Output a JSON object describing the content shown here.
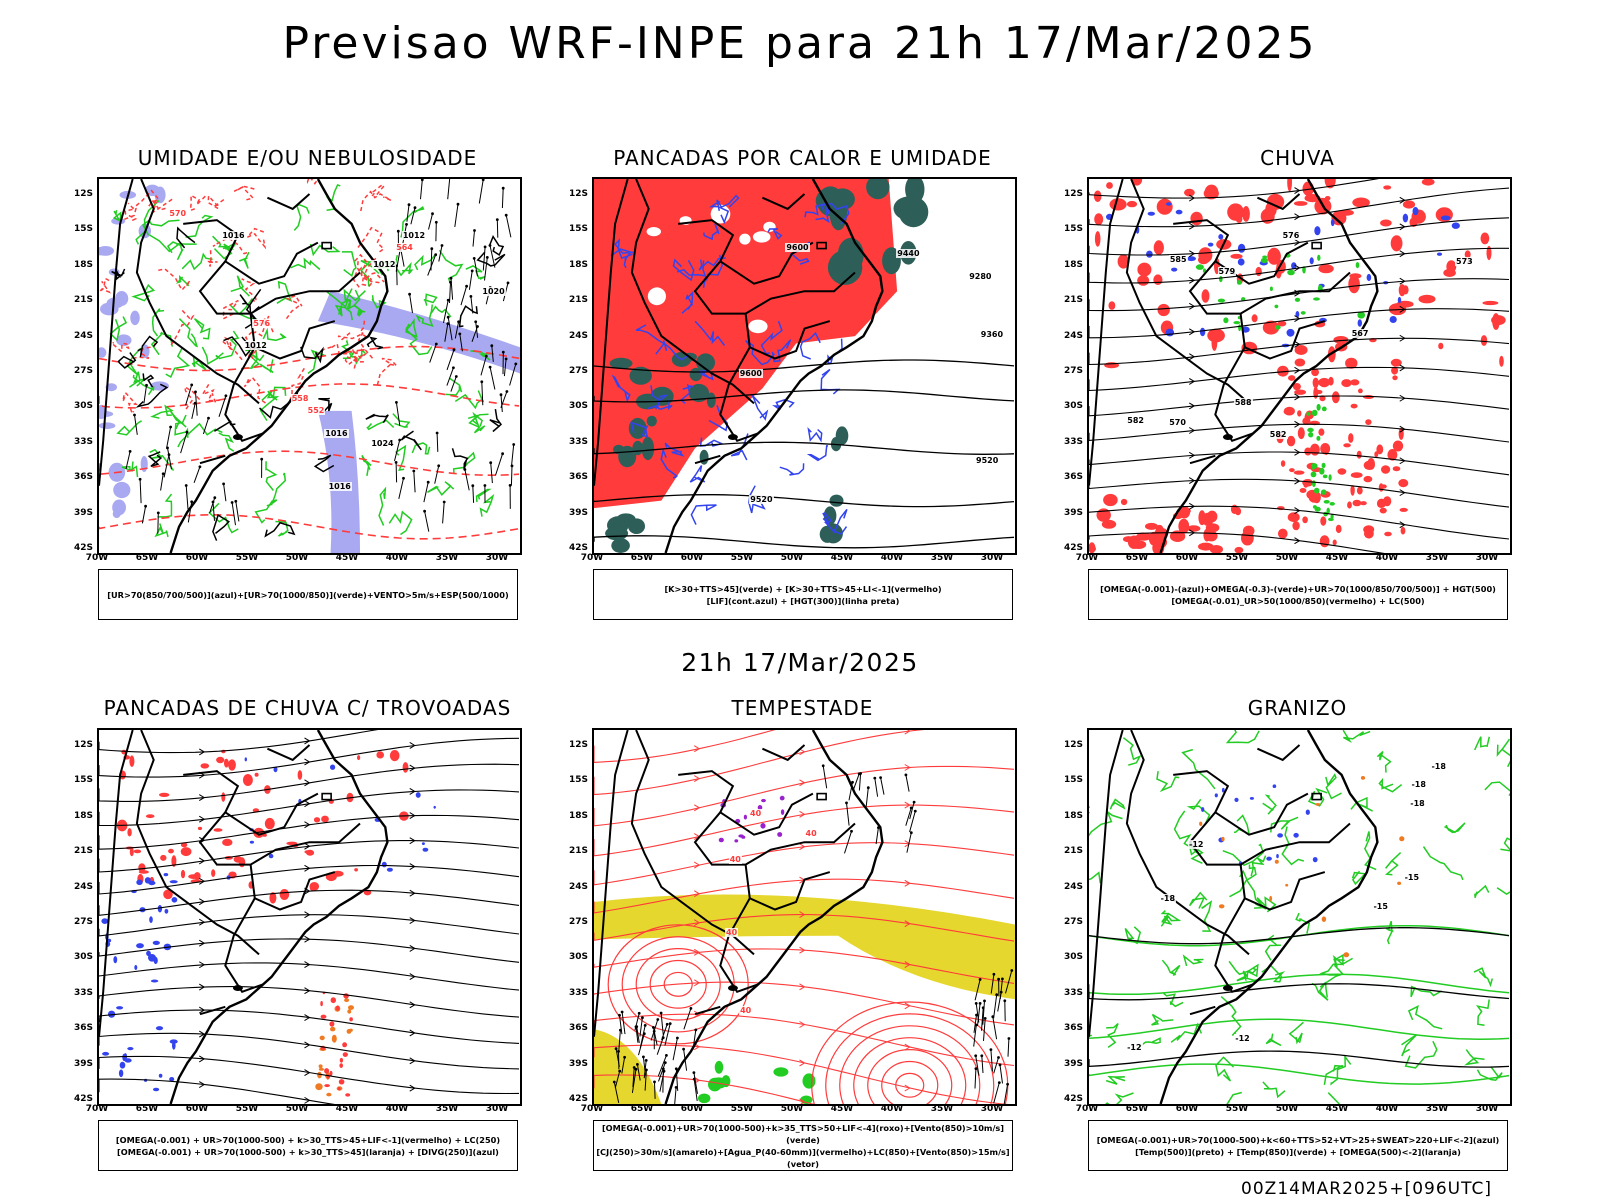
{
  "main_title": "Previsao WRF-INPE  para 21h 17/Mar/2025",
  "mid_title": "21h 17/Mar/2025",
  "footer": "00Z14MAR2025+[096UTC]",
  "lat_ticks": [
    "12S",
    "15S",
    "18S",
    "21S",
    "24S",
    "27S",
    "30S",
    "33S",
    "36S",
    "39S",
    "42S"
  ],
  "lon_ticks": [
    "70W",
    "65W",
    "60W",
    "55W",
    "50W",
    "45W",
    "40W",
    "35W",
    "30W"
  ],
  "panels": [
    {
      "title": "UMIDADE E/OU NEBULOSIDADE",
      "legend": [
        "[UR>70(850/700/500)](azul)+[UR>70(1000/850)](verde)+VENTO>5m/s+ESP(500/1000)"
      ],
      "contour_labels": [
        "1012",
        "1012",
        "1012",
        "1016",
        "1016",
        "1016",
        "1020",
        "1024",
        "576",
        "570",
        "564",
        "558",
        "552"
      ]
    },
    {
      "title": "PANCADAS POR CALOR E UMIDADE",
      "legend": [
        "[K>30+TTS>45](verde) + [K>30+TTS>45+LI<-1](vermelho)",
        "[LIF](cont.azul) + [HGT(300)](linha preta)"
      ],
      "contour_labels": [
        "9600",
        "9600",
        "9520",
        "9520",
        "9440",
        "9360",
        "9280"
      ]
    },
    {
      "title": "CHUVA",
      "legend": [
        "[OMEGA(-0.001)-(azul)+OMEGA(-0.3)-(verde)+UR>70(1000/850/700/500)] + HGT(500)",
        "[OMEGA(-0.01)_UR>50(1000/850)(vermelho) + LC(500)"
      ],
      "contour_labels": [
        "588",
        "585",
        "582",
        "582",
        "579",
        "576",
        "573",
        "570",
        "567"
      ]
    },
    {
      "title": "PANCADAS DE CHUVA C/ TROVOADAS",
      "legend": [
        "[OMEGA(-0.001) + UR>70(1000-500) + k>30_TTS>45+LIF<-1](vermelho) + LC(250)",
        "[OMEGA(-0.001) + UR>70(1000-500) + k>30_TTS>45](laranja) + [DIVG(250)](azul)"
      ],
      "contour_labels": []
    },
    {
      "title": "TEMPESTADE",
      "legend": [
        "[OMEGA(-0.001)+UR>70(1000-500)+k>35_TTS>50+LIF<-4](roxo)+[Vento(850)>10m/s](verde)",
        "[CJ(250)>30m/s](amarelo)+[Agua_P(40-60mm)](vermelho)+LC(850)+[Vento(850)>15m/s](vetor)"
      ],
      "contour_labels": [
        "40",
        "40",
        "40",
        "40",
        "40"
      ]
    },
    {
      "title": "GRANIZO",
      "legend": [
        "[OMEGA(-0.001)+UR>70(1000-500)+k<60+TTS>52+VT>25+SWEAT>220+LIF<-2](azul)",
        "[Temp(500)](preto) + [Temp(850)](verde) + [OMEGA(500)<-2](laranja)"
      ],
      "contour_labels": [
        "-12",
        "-12",
        "-12",
        "-15",
        "-15",
        "-18",
        "-18",
        "-18",
        "-18"
      ]
    }
  ],
  "colors": {
    "blue": "#3344ee",
    "green": "#22cc22",
    "red": "#ff3b3b",
    "light_blue": "#a9a9f2",
    "dark_teal": "#2e5e58",
    "yellow": "#e6d72e",
    "orange": "#f07a22",
    "purple": "#9922cc"
  }
}
